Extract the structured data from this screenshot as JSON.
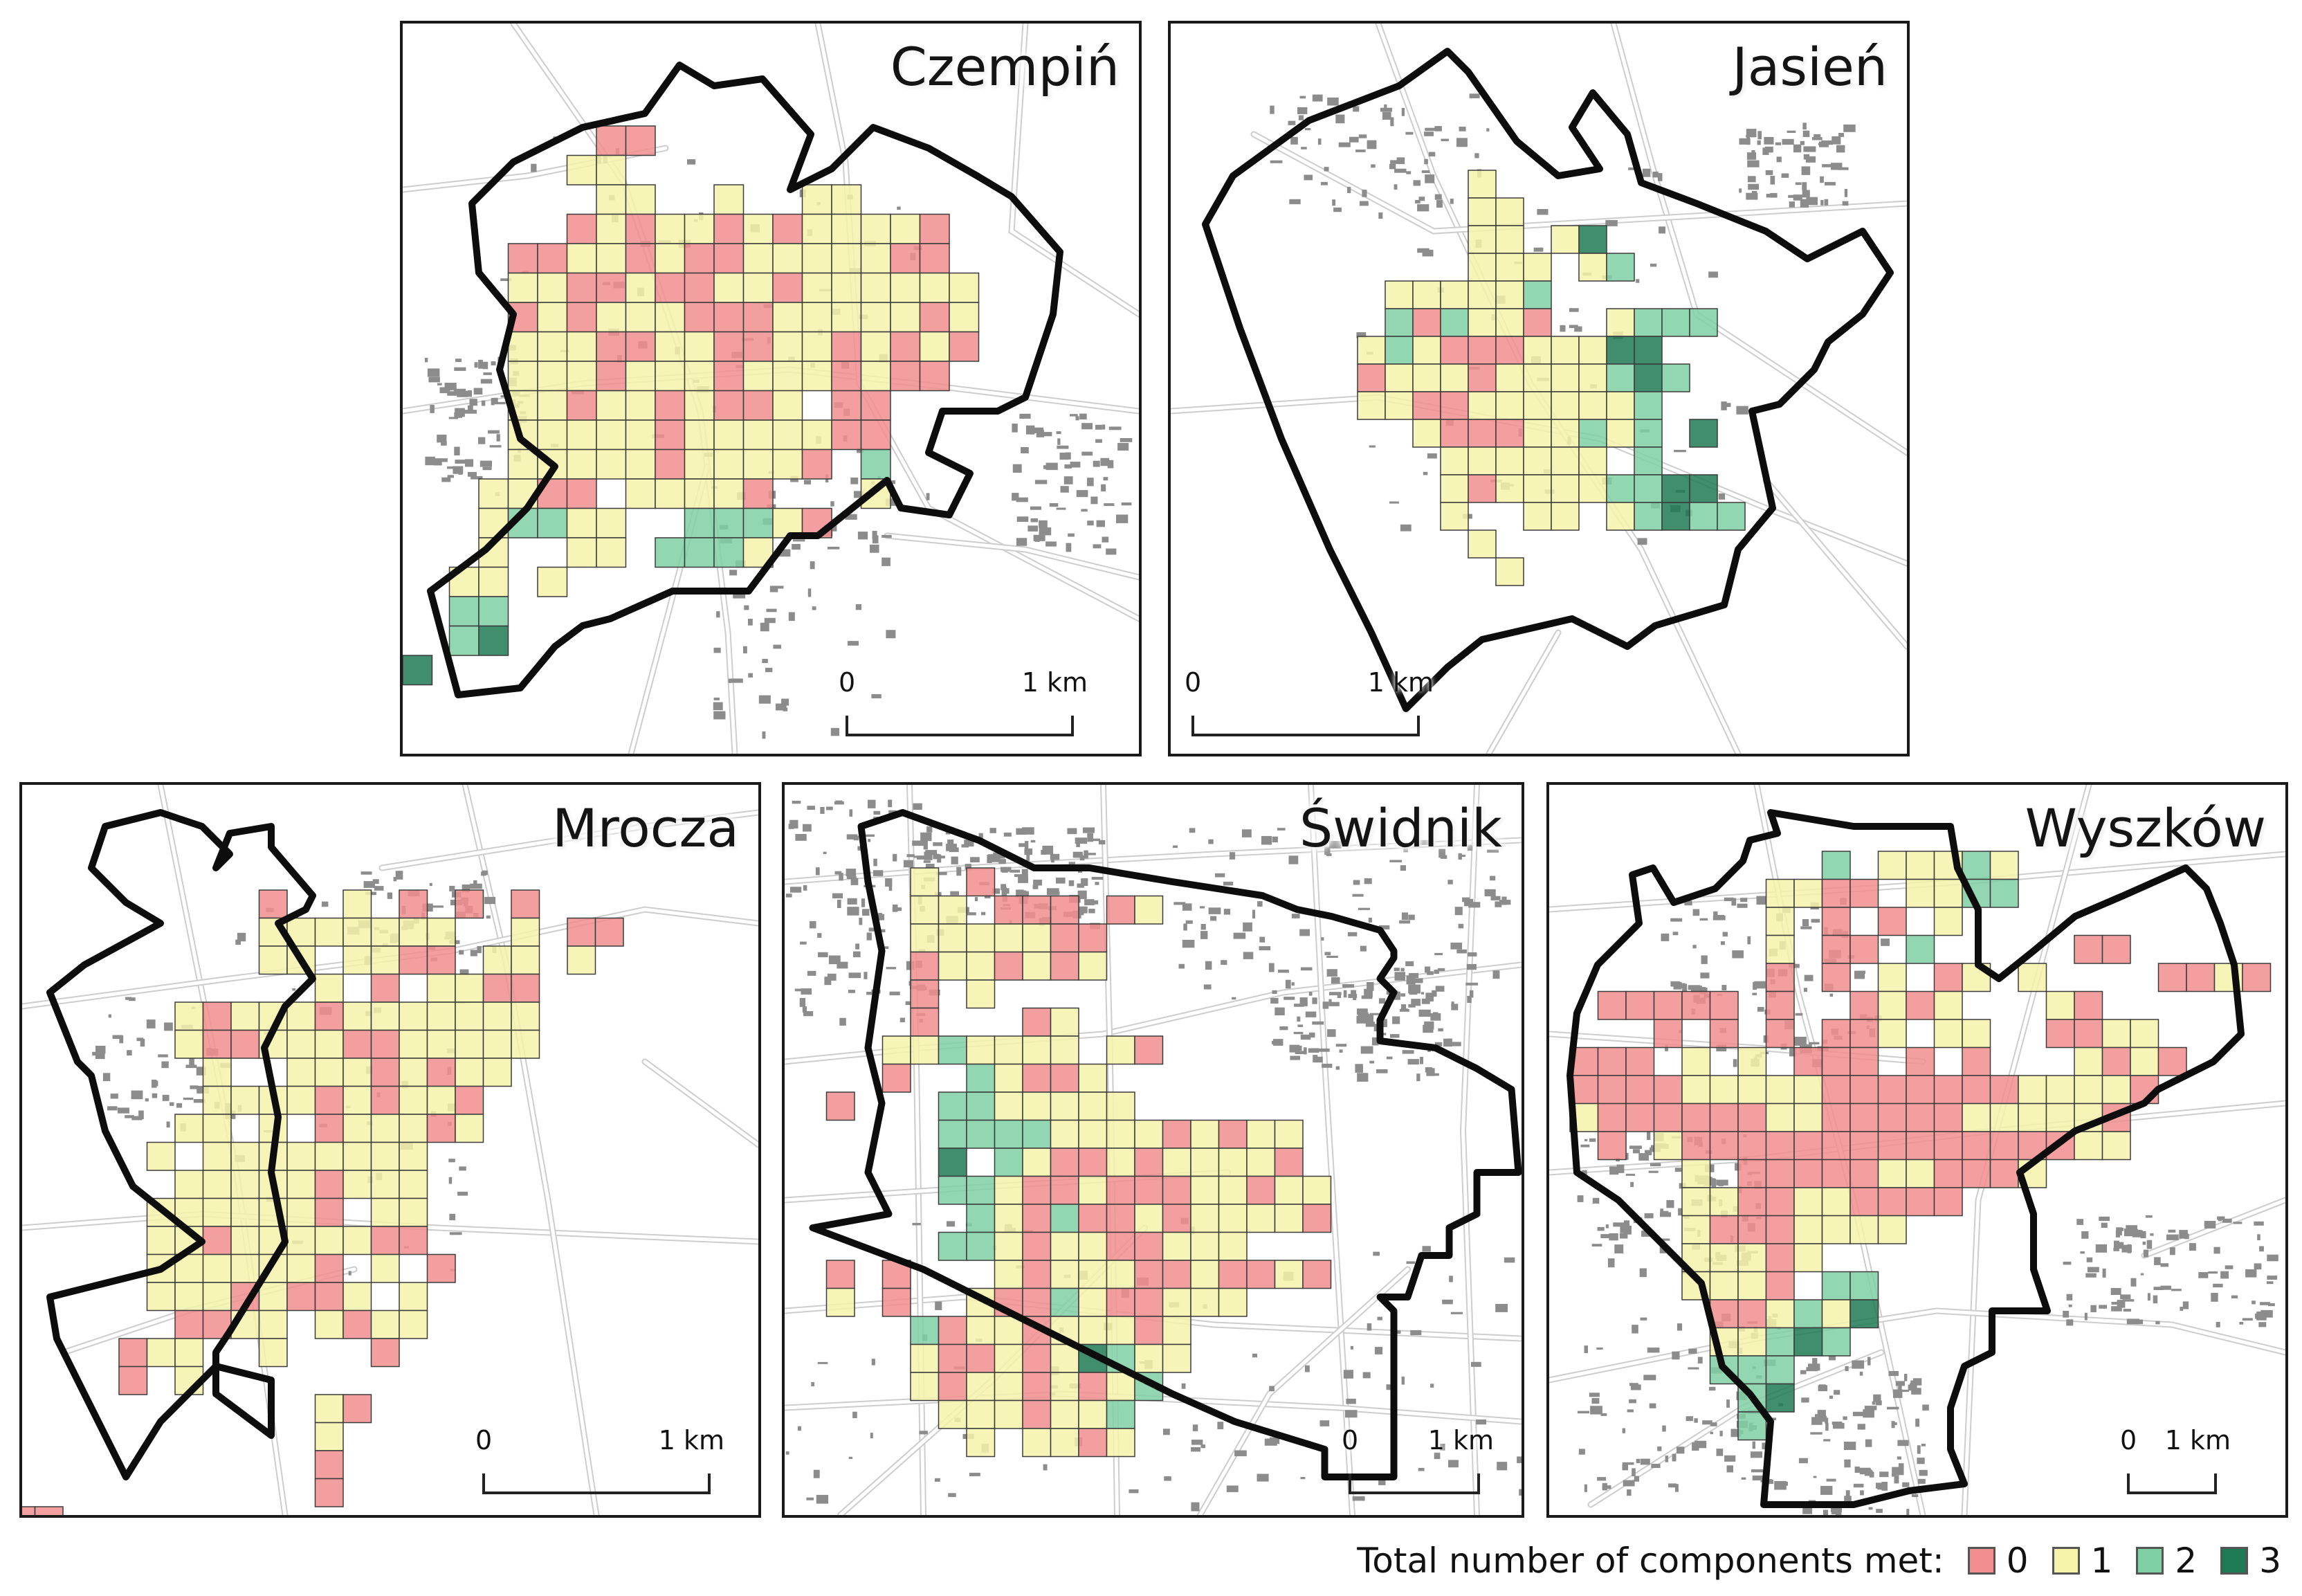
{
  "colors": {
    "c0": "#f28e8e",
    "c1": "#f5f2aa",
    "c2": "#7fd0a4",
    "c3": "#1e7a55",
    "outline": "#0d0d0d",
    "road": "#cdcdcd",
    "building": "#8c8c8c"
  },
  "panels": {
    "czempin": {
      "name": "Czempiń",
      "scale_zero": "0",
      "scale_km": "1 km"
    },
    "jasien": {
      "name": "Jasień",
      "scale_zero": "0",
      "scale_km": "1 km"
    },
    "mrocza": {
      "name": "Mrocza",
      "scale_zero": "0",
      "scale_km": "1 km"
    },
    "swidnik": {
      "name": "Świdnik",
      "scale_zero": "0",
      "scale_km": "1 km"
    },
    "wyszkow": {
      "name": "Wyszków",
      "scale_zero": "0",
      "scale_km": "1 km"
    }
  },
  "legend": {
    "title": "Total number of components met:",
    "items": [
      "0",
      "1",
      "2",
      "3"
    ]
  }
}
